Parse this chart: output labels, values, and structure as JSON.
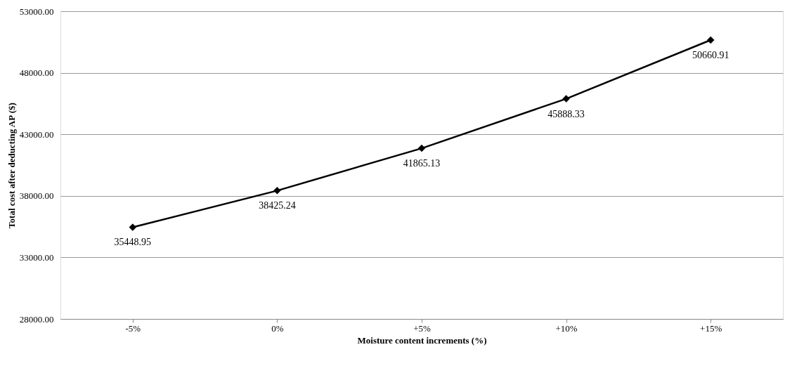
{
  "chart_data": {
    "type": "line",
    "xlabel": "Moisture content increments (%)",
    "ylabel": "Total cost after deducting AP ($)",
    "categories": [
      "-5%",
      "0%",
      "+5%",
      "+10%",
      "+15%"
    ],
    "series": [
      {
        "color": "#000000",
        "values": [
          35448.95,
          38425.24,
          41865.13,
          45888.33,
          50660.91
        ]
      }
    ],
    "ylim": [
      28000,
      53000
    ],
    "yticks": [
      {
        "value": 28000,
        "label": "28000.00"
      },
      {
        "value": 33000,
        "label": "33000.00"
      },
      {
        "value": 38000,
        "label": "38000.00"
      },
      {
        "value": 43000,
        "label": "43000.00"
      },
      {
        "value": 48000,
        "label": "48000.00"
      },
      {
        "value": 53000,
        "label": "53000.00"
      }
    ],
    "grid": "y",
    "marker": "diamond",
    "line_style": "solid",
    "data_labels": true
  }
}
